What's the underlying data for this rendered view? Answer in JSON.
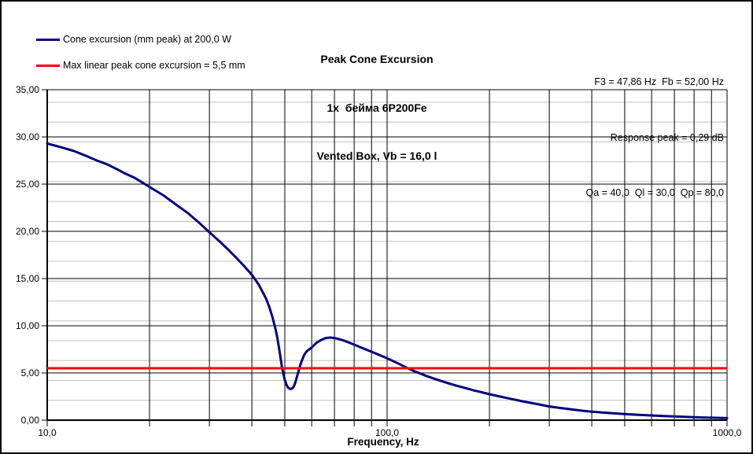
{
  "title": {
    "line1": "Peak Cone Excursion",
    "line2": "1x  бейма 6P200Fe",
    "line3": "Vented Box, Vb = 16,0 l"
  },
  "info": {
    "line1": "F3 = 47,86 Hz  Fb = 52,00 Hz",
    "line2": "Response peak = 0,29 dB",
    "line3": "Qa = 40,0  Ql = 30,0  Qp = 80,0"
  },
  "legend": {
    "items": [
      {
        "label": "Cone excursion (mm peak) at 200,0 W",
        "color": "#000080"
      },
      {
        "label": "Max linear peak cone excursion = 5,5 mm",
        "color": "#ff0000"
      }
    ]
  },
  "colors": {
    "curve": "#000080",
    "max_line": "#ff0000",
    "major_grid": "#000000",
    "minor_grid": "#c0c0c0",
    "background": "#ffffff"
  },
  "chart_data": {
    "type": "line",
    "title": "Peak Cone Excursion",
    "xlabel": "Frequency, Hz",
    "ylabel": "",
    "x_scale": "log",
    "xlim": [
      10,
      1000
    ],
    "ylim": [
      0,
      35
    ],
    "grid": {
      "major": true,
      "minor_horizontal_divisions": 16
    },
    "legend_position": "top-left",
    "y_ticks": [
      {
        "value": 35,
        "label": "35,00"
      },
      {
        "value": 30,
        "label": "30,00"
      },
      {
        "value": 25,
        "label": "25,00"
      },
      {
        "value": 20,
        "label": "20,00"
      },
      {
        "value": 15,
        "label": "15,00"
      },
      {
        "value": 10,
        "label": "10,00"
      },
      {
        "value": 5,
        "label": "5,00"
      },
      {
        "value": 0,
        "label": "0,00"
      }
    ],
    "x_gridline_values": [
      10,
      20,
      30,
      40,
      50,
      60,
      70,
      80,
      90,
      100,
      200,
      300,
      400,
      500,
      600,
      700,
      800,
      900,
      1000
    ],
    "x_tick_labels": [
      {
        "value": 10,
        "label": "10,0"
      },
      {
        "value": 100,
        "label": "100,0"
      },
      {
        "value": 1000,
        "label": "1000,0"
      }
    ],
    "series": [
      {
        "name": "Cone excursion (mm peak) at 200,0 W",
        "color": "#000080",
        "units": "mm",
        "points": [
          [
            10,
            29.3
          ],
          [
            11,
            28.9
          ],
          [
            12,
            28.5
          ],
          [
            13,
            28.0
          ],
          [
            14,
            27.5
          ],
          [
            15,
            27.1
          ],
          [
            16,
            26.6
          ],
          [
            17,
            26.1
          ],
          [
            18,
            25.7
          ],
          [
            19,
            25.2
          ],
          [
            20,
            24.7
          ],
          [
            22,
            23.8
          ],
          [
            24,
            22.8
          ],
          [
            26,
            21.9
          ],
          [
            28,
            20.9
          ],
          [
            30,
            19.9
          ],
          [
            32,
            19.0
          ],
          [
            34,
            18.1
          ],
          [
            36,
            17.2
          ],
          [
            38,
            16.3
          ],
          [
            40,
            15.4
          ],
          [
            42,
            14.3
          ],
          [
            44,
            12.9
          ],
          [
            45,
            12.0
          ],
          [
            46,
            10.9
          ],
          [
            47,
            9.6
          ],
          [
            47.5,
            8.8
          ],
          [
            48,
            7.8
          ],
          [
            48.5,
            6.8
          ],
          [
            49,
            5.7
          ],
          [
            49.5,
            4.9
          ],
          [
            50,
            4.25
          ],
          [
            50.5,
            3.8
          ],
          [
            51,
            3.5
          ],
          [
            51.5,
            3.37
          ],
          [
            52,
            3.3
          ],
          [
            52.5,
            3.35
          ],
          [
            53,
            3.5
          ],
          [
            53.5,
            3.8
          ],
          [
            54,
            4.3
          ],
          [
            54.5,
            4.8
          ],
          [
            55,
            5.3
          ],
          [
            55.5,
            5.8
          ],
          [
            56,
            6.2
          ],
          [
            57,
            6.9
          ],
          [
            58,
            7.3
          ],
          [
            59,
            7.5
          ],
          [
            60,
            7.7
          ],
          [
            62,
            8.2
          ],
          [
            64,
            8.5
          ],
          [
            66,
            8.7
          ],
          [
            68,
            8.75
          ],
          [
            70,
            8.7
          ],
          [
            72,
            8.6
          ],
          [
            75,
            8.4
          ],
          [
            80,
            8.0
          ],
          [
            85,
            7.6
          ],
          [
            90,
            7.25
          ],
          [
            95,
            6.9
          ],
          [
            100,
            6.55
          ],
          [
            105,
            6.2
          ],
          [
            110,
            5.85
          ],
          [
            115,
            5.5
          ],
          [
            120,
            5.2
          ],
          [
            125,
            4.95
          ],
          [
            130,
            4.7
          ],
          [
            140,
            4.3
          ],
          [
            150,
            3.95
          ],
          [
            160,
            3.65
          ],
          [
            170,
            3.4
          ],
          [
            180,
            3.15
          ],
          [
            190,
            2.95
          ],
          [
            200,
            2.75
          ],
          [
            225,
            2.35
          ],
          [
            250,
            2.0
          ],
          [
            275,
            1.72
          ],
          [
            300,
            1.45
          ],
          [
            325,
            1.28
          ],
          [
            350,
            1.13
          ],
          [
            375,
            1.0
          ],
          [
            400,
            0.9
          ],
          [
            450,
            0.76
          ],
          [
            500,
            0.65
          ],
          [
            550,
            0.56
          ],
          [
            600,
            0.5
          ],
          [
            650,
            0.44
          ],
          [
            700,
            0.39
          ],
          [
            750,
            0.35
          ],
          [
            800,
            0.31
          ],
          [
            850,
            0.28
          ],
          [
            900,
            0.26
          ],
          [
            950,
            0.24
          ],
          [
            1000,
            0.22
          ]
        ]
      },
      {
        "name": "Max linear peak cone excursion",
        "color": "#ff0000",
        "type": "hline",
        "value": 5.5,
        "units": "mm"
      }
    ]
  }
}
